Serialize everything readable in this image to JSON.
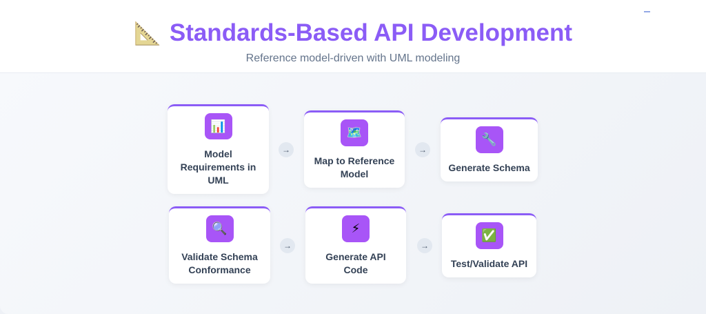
{
  "header": {
    "title": "Standards-Based API Development",
    "title_icon": "🗺",
    "subtitle": "Reference model-driven with UML modeling"
  },
  "accent": "#8b5cf6",
  "arrow": "→",
  "steps": [
    {
      "label": "Model Requirements in UML",
      "icon": "📊",
      "icon_name": "bar-chart-icon"
    },
    {
      "label": "Map to Reference Model",
      "icon": "🗺️",
      "icon_name": "map-icon"
    },
    {
      "label": "Generate Schema",
      "icon": "🔧",
      "icon_name": "wrench-icon"
    },
    {
      "label": "Validate Schema Conformance",
      "icon": "🔍",
      "icon_name": "magnifier-icon"
    },
    {
      "label": "Generate API Code",
      "icon": "⚡",
      "icon_name": "lightning-icon"
    },
    {
      "label": "Test/Validate API",
      "icon": "✅",
      "icon_name": "check-icon"
    }
  ]
}
